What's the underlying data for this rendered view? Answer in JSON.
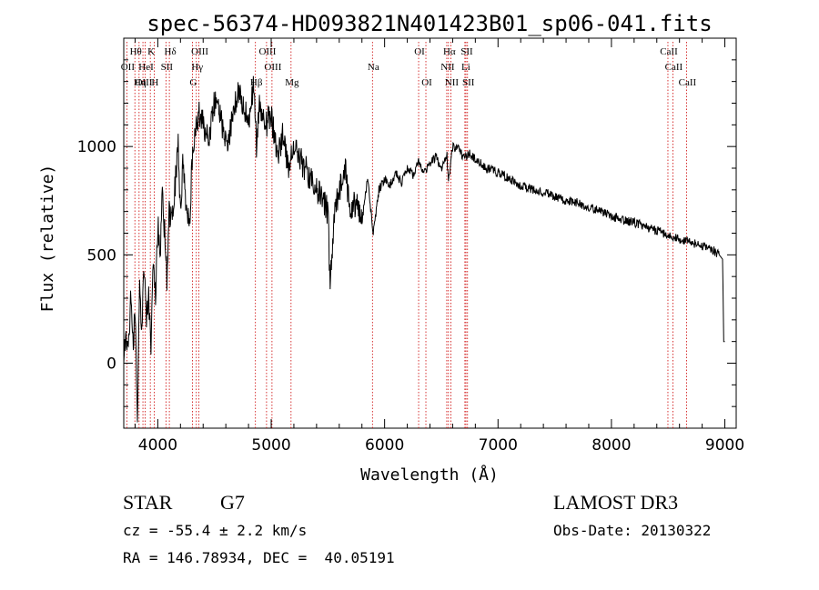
{
  "chart_data": {
    "type": "line",
    "title": "spec-56374-HD093821N401423B01_sp06-041.fits",
    "xlabel": "Wavelength (Å)",
    "ylabel": "Flux (relative)",
    "xlim": [
      3700,
      9100
    ],
    "ylim": [
      -300,
      1500
    ],
    "x_ticks": [
      4000,
      5000,
      6000,
      7000,
      8000,
      9000
    ],
    "y_ticks": [
      0,
      500,
      1000
    ],
    "grid": false,
    "series": [
      {
        "color": "#000000",
        "x": [
          3700,
          3720,
          3740,
          3760,
          3780,
          3800,
          3820,
          3840,
          3860,
          3880,
          3900,
          3920,
          3940,
          3960,
          3980,
          4000,
          4020,
          4040,
          4060,
          4080,
          4100,
          4120,
          4150,
          4180,
          4200,
          4220,
          4250,
          4280,
          4300,
          4330,
          4360,
          4400,
          4450,
          4500,
          4550,
          4600,
          4650,
          4700,
          4750,
          4800,
          4850,
          4870,
          4900,
          4950,
          5000,
          5050,
          5100,
          5150,
          5200,
          5250,
          5300,
          5350,
          5400,
          5450,
          5500,
          5520,
          5550,
          5600,
          5650,
          5700,
          5750,
          5800,
          5850,
          5900,
          5950,
          6000,
          6050,
          6100,
          6150,
          6200,
          6250,
          6300,
          6350,
          6400,
          6450,
          6500,
          6550,
          6563,
          6600,
          6650,
          6700,
          6750,
          6800,
          6900,
          7000,
          7100,
          7200,
          7300,
          7400,
          7500,
          7600,
          7700,
          7800,
          7900,
          8000,
          8100,
          8200,
          8300,
          8400,
          8500,
          8600,
          8700,
          8800,
          8900,
          8950,
          8980,
          8990,
          9000
        ],
        "y": [
          0,
          150,
          50,
          300,
          100,
          200,
          -250,
          350,
          150,
          450,
          200,
          300,
          100,
          500,
          300,
          650,
          500,
          800,
          600,
          400,
          700,
          650,
          800,
          1000,
          700,
          900,
          750,
          650,
          900,
          1050,
          1150,
          1100,
          1050,
          1200,
          1150,
          1000,
          1100,
          1250,
          1200,
          1100,
          1300,
          1000,
          1200,
          1100,
          1150,
          950,
          1050,
          900,
          1000,
          950,
          900,
          850,
          800,
          750,
          700,
          350,
          650,
          800,
          900,
          700,
          750,
          650,
          850,
          600,
          800,
          850,
          820,
          880,
          830,
          900,
          870,
          930,
          880,
          920,
          950,
          900,
          960,
          830,
          1000,
          990,
          950,
          970,
          940,
          900,
          880,
          850,
          820,
          800,
          790,
          770,
          750,
          740,
          720,
          700,
          680,
          660,
          650,
          630,
          610,
          590,
          570,
          560,
          540,
          520,
          500,
          480,
          100,
          100
        ]
      }
    ],
    "annotations": [
      "Hθ",
      "OII",
      "OIII",
      "K",
      "HeI",
      "Hη",
      "Hδ",
      "SII",
      "H",
      "OIII",
      "Hγ",
      "G",
      "OIII",
      "OIII",
      "Hβ",
      "Mg",
      "Na",
      "OI",
      "OI",
      "Hα",
      "NII",
      "NII",
      "SII",
      "Li",
      "SII",
      "CaII",
      "CaII",
      "CaII"
    ]
  },
  "footer": {
    "class_label": "STAR",
    "subclass": "G7",
    "survey": "LAMOST DR3",
    "cz": "cz = -55.4 ± 2.2 km/s",
    "obs_date": "Obs-Date: 20130322",
    "radec": "RA = 146.78934, DEC =  40.05191"
  }
}
